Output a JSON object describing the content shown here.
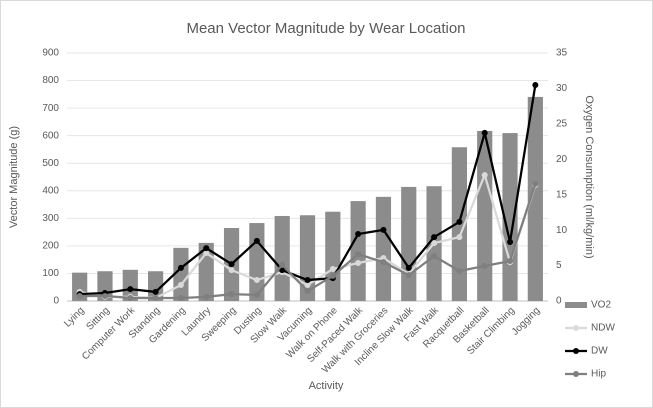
{
  "chart_data": {
    "type": "combo",
    "title": "Mean Vector Magnitude by Wear Location",
    "x_label": "Activity",
    "y_label": "Vector Magnitude (g)",
    "y2_label": "Oxygen Consumption (ml/kg/min)",
    "categories": [
      "Lying",
      "Sitting",
      "Computer Work",
      "Standing",
      "Gardening",
      "Laundry",
      "Sweeping",
      "Dusting",
      "Slow Walk",
      "Vacuming",
      "Walk on Phone",
      "Self-Paced Walk",
      "Walk with Groceries",
      "Incline Slow Walk",
      "Fast Walk",
      "Racquetball",
      "Basketball",
      "Stair Climbing",
      "Jogging"
    ],
    "series": [
      {
        "name": "VO2",
        "type": "bar",
        "axis": "y2",
        "color": "#8c8c8c",
        "values": [
          4.0,
          4.2,
          4.4,
          4.2,
          7.5,
          8.2,
          10.3,
          11.0,
          12.0,
          12.1,
          12.6,
          14.1,
          14.7,
          16.1,
          16.2,
          21.7,
          24.0,
          23.7,
          28.8
        ]
      },
      {
        "name": "NDW",
        "type": "line",
        "color": "#d9d9d9",
        "values": [
          33,
          15,
          15,
          11,
          58,
          174,
          112,
          76,
          105,
          58,
          116,
          138,
          156,
          98,
          210,
          232,
          457,
          141,
          421
        ]
      },
      {
        "name": "DW",
        "type": "line",
        "color": "#000000",
        "values": [
          25,
          29,
          43,
          33,
          120,
          192,
          134,
          218,
          112,
          76,
          83,
          243,
          258,
          120,
          232,
          287,
          610,
          214,
          784
        ]
      },
      {
        "name": "Hip",
        "type": "line",
        "color": "#7f7f7f",
        "values": [
          18,
          18,
          11,
          11,
          11,
          15,
          25,
          22,
          131,
          36,
          91,
          170,
          141,
          94,
          163,
          109,
          127,
          145,
          425
        ]
      }
    ],
    "ylim": [
      0,
      900
    ],
    "yticks": [
      0,
      100,
      200,
      300,
      400,
      500,
      600,
      700,
      800,
      900
    ],
    "y2lim": [
      0,
      35
    ],
    "y2ticks": [
      0,
      5,
      10,
      15,
      20,
      25,
      30,
      35
    ],
    "legend": "right"
  }
}
